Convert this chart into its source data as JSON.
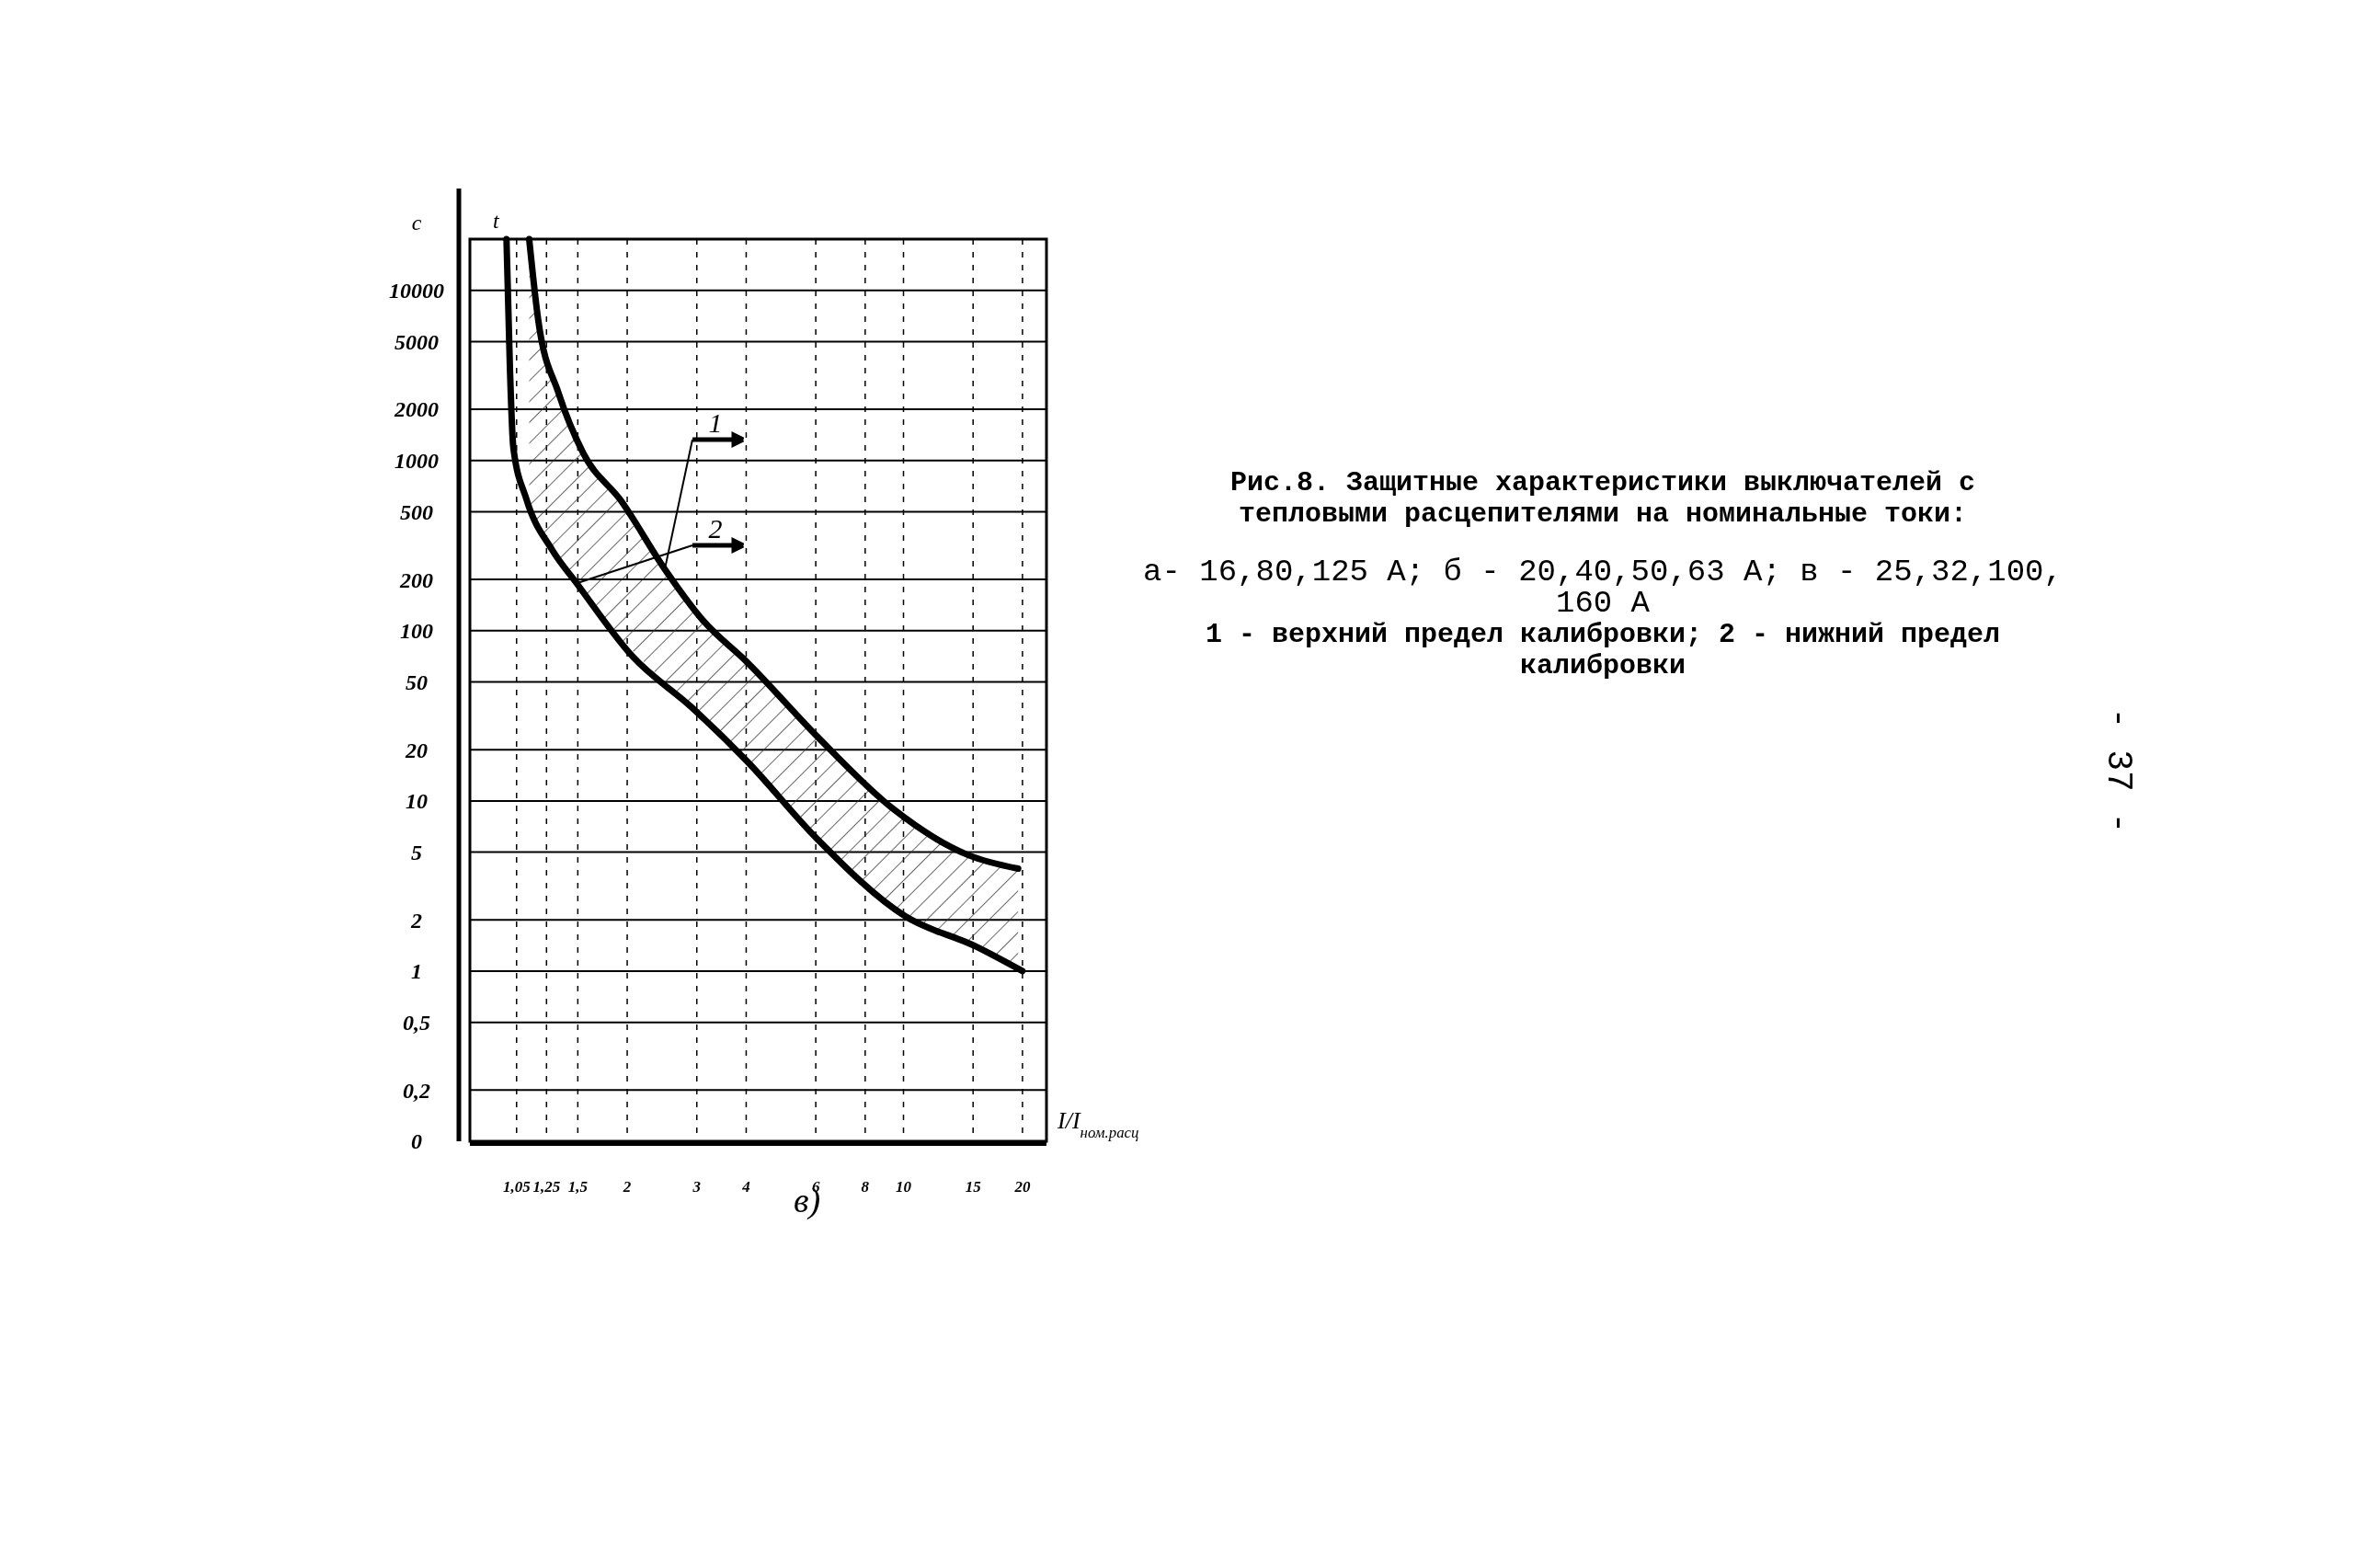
{
  "chart_data": {
    "type": "line",
    "title": "Рис.8. Защитные характеристики выключателей с тепловыми расцепителями на номинальные токи:",
    "subtitle": "а- 16,80,125 А; б - 20,40,50,63 А; в - 25,32,100, 160 А",
    "xlabel": "I/I$_{ном.расц}$",
    "ylabel": "t",
    "annotations": [
      "1 - верхний предел калибровки; 2 - нижний предел калибровки",
      "в)",
      "c",
      "- 37 -"
    ],
    "log": "xy",
    "grid": true,
    "xlim": [
      0.8,
      23
    ],
    "xticks": [
      {
        "value": 1.05,
        "label": "1,05"
      },
      {
        "value": 1.25,
        "label": "1,25"
      },
      {
        "value": 1.5,
        "label": "1,5"
      },
      2,
      3,
      4,
      6,
      8,
      10,
      15,
      20
    ],
    "ylim": [
      0.1,
      20000
    ],
    "yticks": [
      {
        "value": 0.1,
        "label": "0"
      },
      {
        "value": 0.2,
        "label": "0,2"
      },
      {
        "value": 0.5,
        "label": "0,5"
      },
      1,
      2,
      5,
      10,
      20,
      50,
      100,
      200,
      500,
      1000,
      2000,
      5000,
      10000
    ],
    "series": [
      {
        "name": "1",
        "color": "#000000",
        "x": [
          1.13,
          1.19,
          1.34,
          1.55,
          1.93,
          2.49,
          3.11,
          4.03,
          6.04,
          9.4,
          14.6,
          19.5
        ],
        "values": [
          20000,
          6800,
          2500,
          1100,
          580,
          230,
          115,
          65,
          24,
          9,
          4.8,
          4
        ],
        "upper": [
          20000,
          6800,
          2500,
          1100,
          580,
          230,
          115,
          65,
          24,
          9,
          4.8,
          4
        ],
        "lower": [
          530,
          420,
          260,
          170,
          90,
          50,
          30,
          17,
          6,
          2.3,
          1.45,
          1.05
        ]
      },
      {
        "name": "2",
        "color": "#000000",
        "x": [
          0.99,
          1.01,
          1.03,
          1.11,
          1.29,
          1.49,
          2.07,
          2.89,
          4.03,
          6.04,
          10.1,
          15.2,
          20
        ],
        "values": [
          20000,
          3500,
          1200,
          600,
          300,
          190,
          70,
          36,
          17,
          6,
          2.1,
          1.4,
          1
        ]
      }
    ]
  }
}
